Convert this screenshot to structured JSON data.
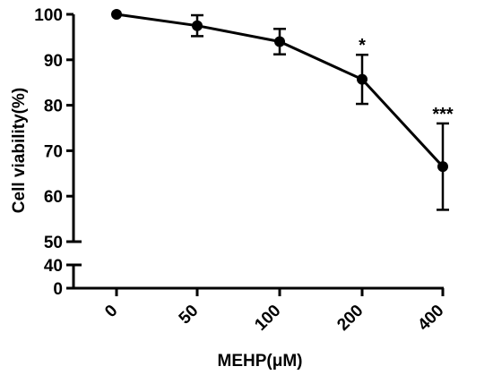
{
  "chart_data": {
    "type": "line",
    "xlabel": "MEHP(μM)",
    "ylabel": "Cell viability(%)",
    "categories": [
      "0",
      "50",
      "100",
      "200",
      "400"
    ],
    "series": [
      {
        "values": [
          100,
          97.5,
          94,
          85.7,
          66.5
        ],
        "error": [
          0,
          2.3,
          2.8,
          5.4,
          9.5
        ]
      }
    ],
    "y_axis_broken": true,
    "y_ticks_upper": [
      50,
      60,
      70,
      80,
      90,
      100
    ],
    "y_ticks_lower": [
      0,
      40
    ],
    "ylim_upper": [
      50,
      100
    ],
    "ylim_lower": [
      0,
      40
    ],
    "significance": [
      "",
      "",
      "",
      "*",
      "***"
    ],
    "grid": false,
    "legend": "none"
  }
}
